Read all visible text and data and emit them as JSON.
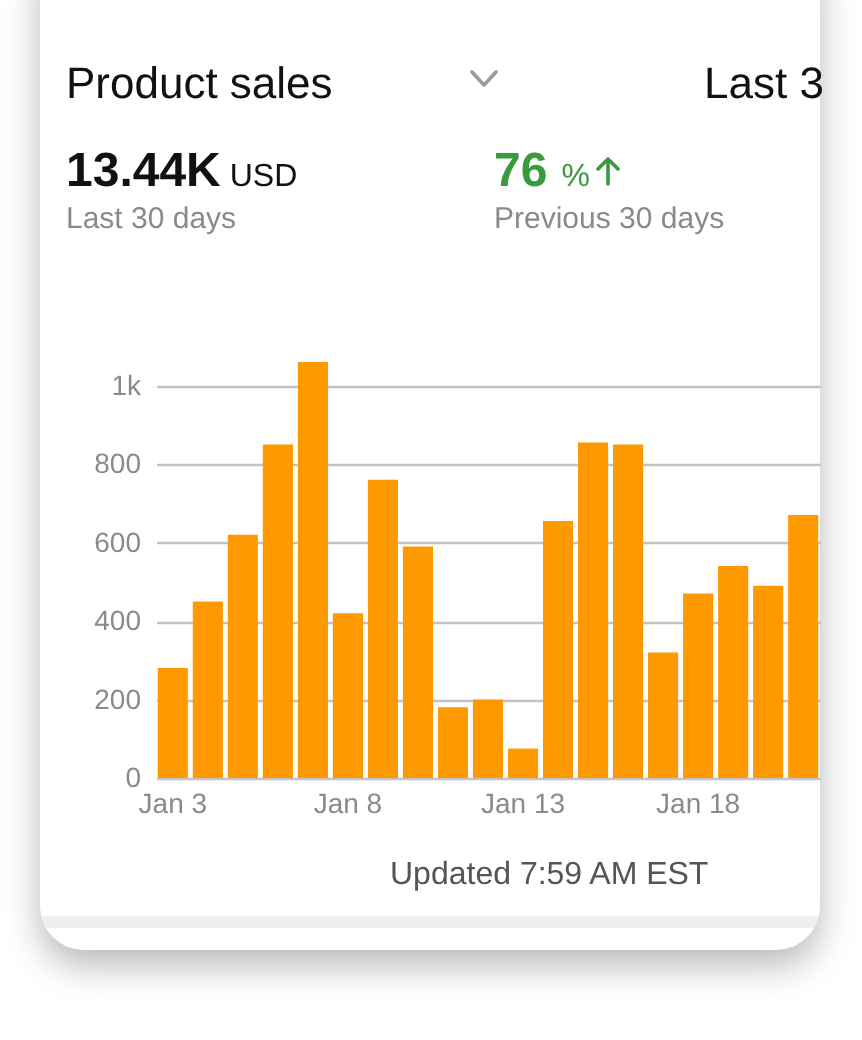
{
  "chart_data": {
    "type": "bar",
    "title": "Product sales",
    "annotations": [
      "Last 3",
      "13.44K USD",
      "Last 30 days",
      "76 %",
      "Previous 30 days",
      "Updated 7:59 AM EST"
    ],
    "categories": [
      "Jan 3",
      null,
      null,
      null,
      null,
      "Jan 8",
      null,
      null,
      null,
      null,
      "Jan 13",
      null,
      null,
      null,
      null,
      "Jan 18",
      null,
      null,
      null
    ],
    "values": [
      280,
      450,
      620,
      850,
      1060,
      420,
      760,
      590,
      180,
      200,
      75,
      655,
      855,
      850,
      320,
      470,
      540,
      490,
      670
    ],
    "color": "#fe9a00",
    "ylim": [
      0,
      1060
    ],
    "yticks": [
      0,
      200,
      400,
      600,
      800,
      {
        "value": 1000,
        "label": "1k"
      }
    ],
    "grid": "y"
  }
}
